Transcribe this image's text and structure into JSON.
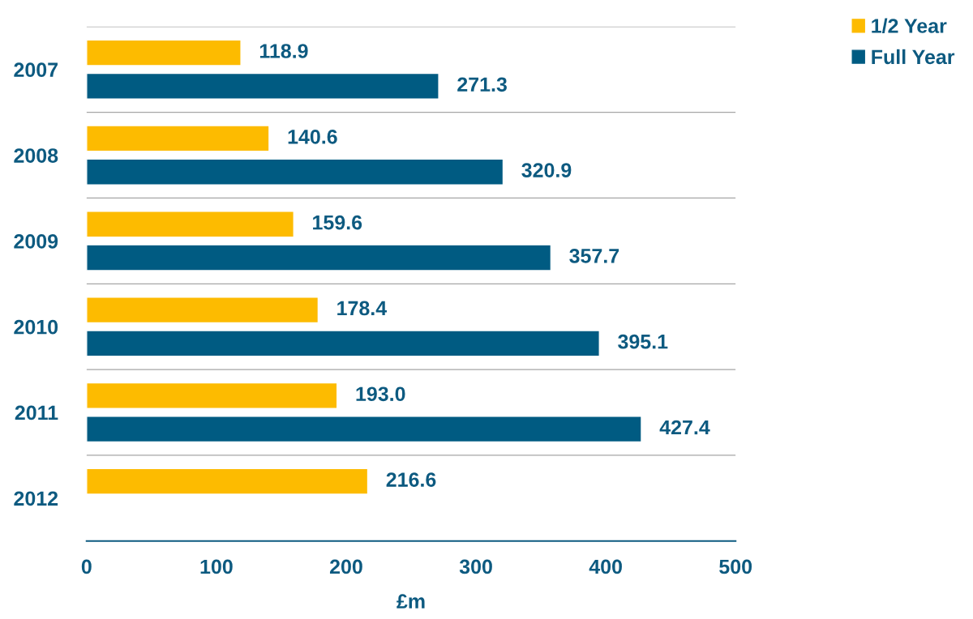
{
  "chart_data": {
    "type": "bar",
    "orientation": "horizontal",
    "xlabel": "£m",
    "categories": [
      "2007",
      "2008",
      "2009",
      "2010",
      "2011",
      "2012"
    ],
    "series": [
      {
        "name": "1/2 Year",
        "color": "#fdbb00",
        "values": [
          118.9,
          140.6,
          159.6,
          178.4,
          193.0,
          216.6
        ],
        "value_labels": [
          "118.9",
          "140.6",
          "159.6",
          "178.4",
          "193.0",
          "216.6"
        ]
      },
      {
        "name": "Full Year",
        "color": "#005b82",
        "values": [
          271.3,
          320.9,
          357.7,
          395.1,
          427.4,
          null
        ],
        "value_labels": [
          "271.3",
          "320.9",
          "357.7",
          "395.1",
          "427.4",
          null
        ]
      }
    ],
    "xlim": [
      0,
      500
    ],
    "xticks": [
      0,
      100,
      200,
      300,
      400,
      500
    ],
    "grid": "y",
    "legend": "top right"
  }
}
